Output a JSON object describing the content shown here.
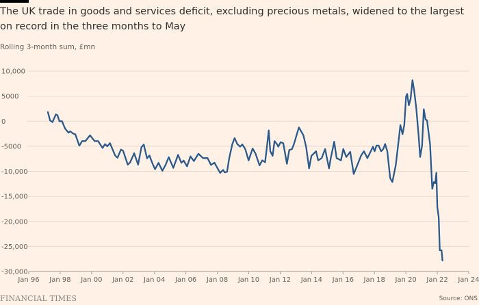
{
  "chart_data": {
    "type": "line",
    "title": "The UK trade in goods and services deficit, excluding precious metals, widened to the largest on record in the three months to May",
    "subtitle": "Rolling 3-month sum, £mn",
    "xlabel": "",
    "ylabel": "",
    "xlim": [
      1996,
      2024
    ],
    "ylim": [
      -30000,
      10000
    ],
    "grid": true,
    "line_color": "#2a5a8c",
    "yticks": [
      10000,
      5000,
      0,
      -5000,
      -10000,
      -15000,
      -20000,
      -25000,
      -30000
    ],
    "ytick_labels": [
      "10,000",
      "5000",
      "0",
      "-5000",
      "-10,000",
      "-15,000",
      "-20,000",
      "-25,000",
      "-30,000"
    ],
    "xticks": [
      1996,
      1998,
      2000,
      2002,
      2004,
      2006,
      2008,
      2010,
      2012,
      2014,
      2016,
      2018,
      2020,
      2022,
      2024
    ],
    "xtick_labels": [
      "Jan 96",
      "Jan 98",
      "Jan 00",
      "Jan 02",
      "Jan 04",
      "Jan 06",
      "Jan 08",
      "Jan 10",
      "Jan 12",
      "Jan 14",
      "Jan 16",
      "Jan 18",
      "Jan 20",
      "Jan 22",
      "Jan 24"
    ],
    "x": [
      1997.22,
      1997.36,
      1997.51,
      1997.73,
      1997.83,
      1997.95,
      1998.12,
      1998.31,
      1998.53,
      1998.64,
      1998.82,
      1998.96,
      1999.22,
      1999.4,
      1999.61,
      1999.9,
      2000.19,
      2000.41,
      2000.7,
      2000.85,
      2001.0,
      2001.17,
      2001.5,
      2001.65,
      2001.87,
      2002.01,
      2002.3,
      2002.45,
      2002.71,
      2002.96,
      2003.17,
      2003.32,
      2003.53,
      2003.68,
      2003.87,
      2004.04,
      2004.26,
      2004.5,
      2004.7,
      2004.91,
      2005.2,
      2005.5,
      2005.71,
      2005.86,
      2006.07,
      2006.29,
      2006.51,
      2006.8,
      2007.09,
      2007.38,
      2007.6,
      2007.82,
      2008.18,
      2008.37,
      2008.47,
      2008.62,
      2008.76,
      2008.95,
      2009.1,
      2009.27,
      2009.45,
      2009.59,
      2009.78,
      2009.99,
      2010.25,
      2010.43,
      2010.69,
      2010.86,
      2011.04,
      2011.16,
      2011.27,
      2011.37,
      2011.52,
      2011.64,
      2011.81,
      2011.88,
      2012.03,
      2012.2,
      2012.43,
      2012.58,
      2012.75,
      2012.87,
      2013.19,
      2013.48,
      2013.65,
      2013.84,
      2013.99,
      2014.28,
      2014.42,
      2014.64,
      2014.86,
      2015.11,
      2015.22,
      2015.44,
      2015.59,
      2015.87,
      2016.02,
      2016.21,
      2016.46,
      2016.68,
      2016.97,
      2017.14,
      2017.33,
      2017.55,
      2017.91,
      2018.01,
      2018.13,
      2018.27,
      2018.42,
      2018.56,
      2018.68,
      2018.82,
      2019.0,
      2019.14,
      2019.36,
      2019.51,
      2019.65,
      2019.79,
      2019.9,
      2020.01,
      2020.08,
      2020.19,
      2020.3,
      2020.42,
      2020.52,
      2020.66,
      2020.81,
      2020.91,
      2021.03,
      2021.14,
      2021.25,
      2021.35,
      2021.54,
      2021.68,
      2021.78,
      2021.87,
      2021.94,
      2022.0,
      2022.09,
      2022.16,
      2022.27,
      2022.33
    ],
    "y": [
      1820,
      140,
      -180,
      1370,
      1190,
      0,
      0,
      -1460,
      -2280,
      -2010,
      -2470,
      -2600,
      -4880,
      -3970,
      -3970,
      -2800,
      -3970,
      -3970,
      -5340,
      -4560,
      -5020,
      -4380,
      -6850,
      -7300,
      -5660,
      -5930,
      -8670,
      -8220,
      -6390,
      -8670,
      -5200,
      -4660,
      -7400,
      -6850,
      -8400,
      -9590,
      -8310,
      -9900,
      -8770,
      -7170,
      -9320,
      -6710,
      -8310,
      -7850,
      -9000,
      -7030,
      -7950,
      -6500,
      -7370,
      -7370,
      -8730,
      -8280,
      -10320,
      -9730,
      -10230,
      -10090,
      -7370,
      -4640,
      -3370,
      -4540,
      -5090,
      -4640,
      -5550,
      -7820,
      -5460,
      -6450,
      -8820,
      -7820,
      -8180,
      -5090,
      -1820,
      -6000,
      -6910,
      -3960,
      -4640,
      -5090,
      -4180,
      -4400,
      -8500,
      -5770,
      -5550,
      -4640,
      -1230,
      -2820,
      -5090,
      -9410,
      -6910,
      -6000,
      -7820,
      -7370,
      -5550,
      -9410,
      -7370,
      -4090,
      -7370,
      -7820,
      -5550,
      -7140,
      -6090,
      -10550,
      -8280,
      -6910,
      -6000,
      -7370,
      -5090,
      -6000,
      -4870,
      -4870,
      -6000,
      -5550,
      -4550,
      -6000,
      -11360,
      -12140,
      -8730,
      -4640,
      -770,
      -2590,
      -770,
      4910,
      5450,
      3180,
      4450,
      8180,
      6270,
      2640,
      -2820,
      -7140,
      -4860,
      2410,
      360,
      140,
      -4640,
      -13500,
      -12140,
      -12360,
      -10320,
      -17140,
      -19180,
      -25770,
      -25770,
      -27820
    ]
  },
  "footer": {
    "brand": "FINANCIAL TIMES",
    "source": "Source: ONS"
  }
}
